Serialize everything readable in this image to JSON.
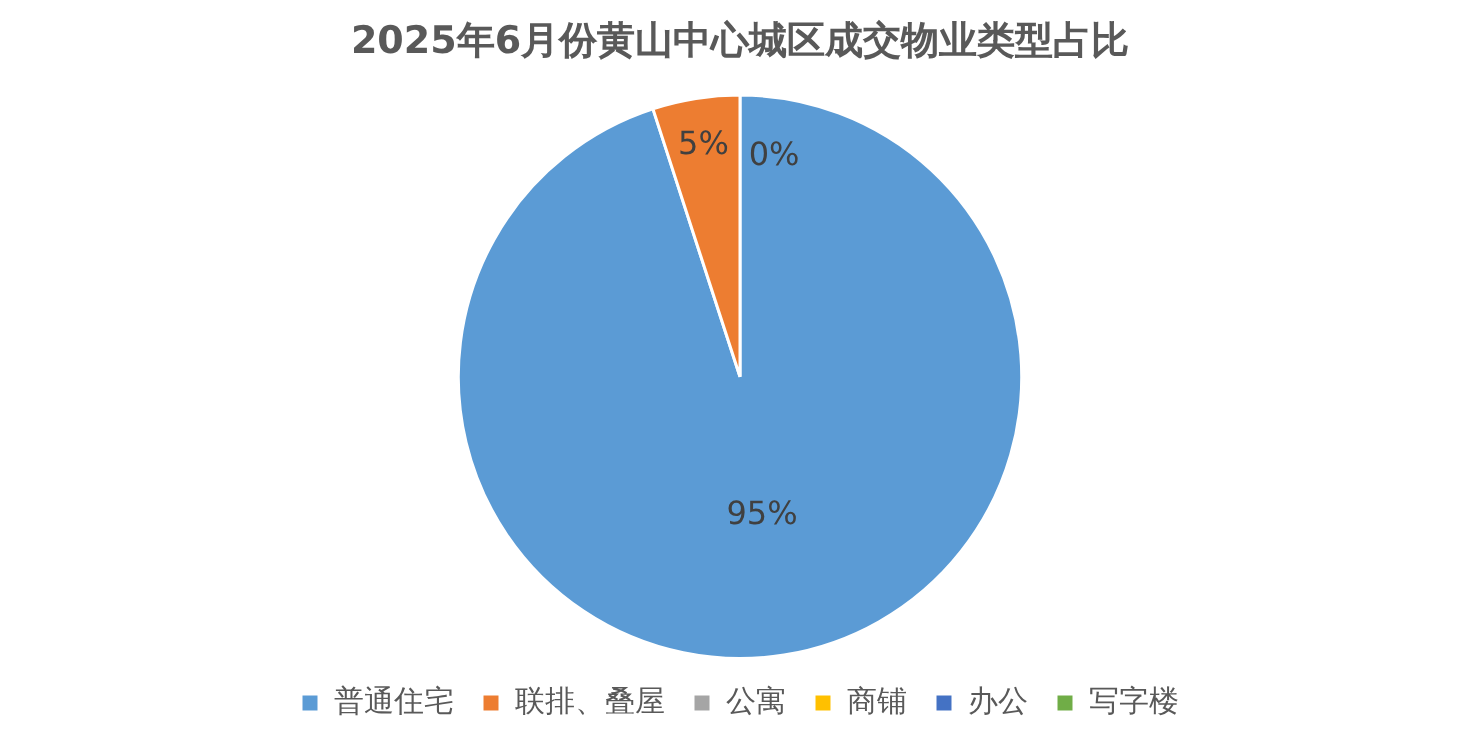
{
  "chart_data": {
    "type": "pie",
    "title": "2025年6月份黄山中心城区成交物业类型占比",
    "categories": [
      "普通住宅",
      "联排、叠屋",
      "公寓",
      "商铺",
      "办公",
      "写字楼"
    ],
    "values": [
      95,
      5,
      0,
      0,
      0,
      0
    ],
    "colors": [
      "#5b9bd5",
      "#ed7d31",
      "#a5a5a5",
      "#ffc000",
      "#4472c4",
      "#70ad47"
    ],
    "value_labels": [
      "95%",
      "5%",
      "0%",
      null,
      null,
      null
    ],
    "legend": "bottom"
  }
}
